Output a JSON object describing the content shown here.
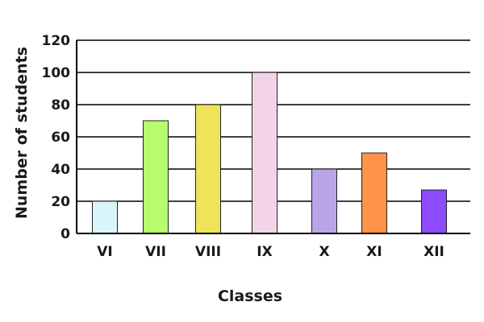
{
  "chart_data": {
    "type": "bar",
    "title": "",
    "xlabel": "Classes",
    "ylabel": "Number of students",
    "categories": [
      "VI",
      "VII",
      "VIII",
      "IX",
      "X",
      "XI",
      "XII"
    ],
    "values": [
      20,
      70,
      80,
      100,
      40,
      50,
      27
    ],
    "bar_colors": [
      "#d9f6fd",
      "#b7fb6f",
      "#efe35a",
      "#f2d4e6",
      "#b9a5e6",
      "#ff934b",
      "#8c4bfd"
    ],
    "ylim": [
      0,
      120
    ],
    "yticks": [
      0,
      20,
      40,
      60,
      80,
      100,
      120
    ],
    "grid": true,
    "legend": "none"
  }
}
